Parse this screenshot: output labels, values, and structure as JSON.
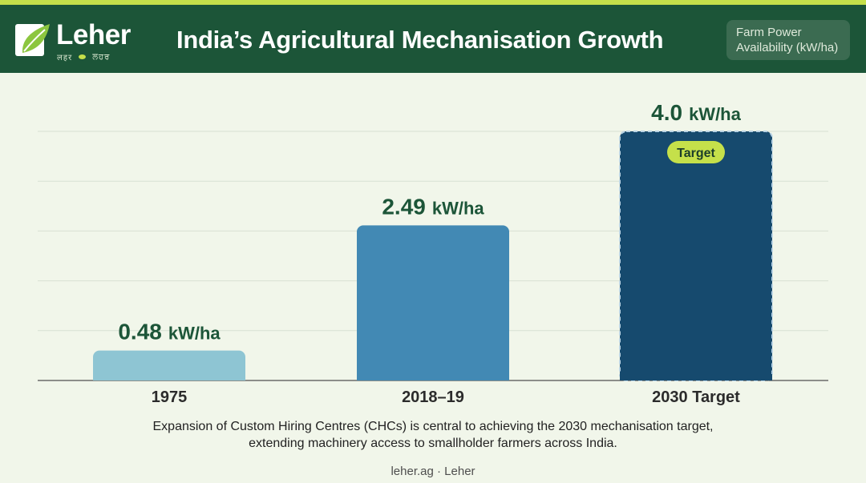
{
  "header": {
    "brand": "Leher",
    "brand_sub_left": "लहर",
    "brand_sub_right": "ਲਹਰ",
    "title": "India’s Agricultural Mechanisation Growth",
    "metric_badge_line1": "Farm Power",
    "metric_badge_line2": "Availability (kW/ha)"
  },
  "chart_data": {
    "type": "bar",
    "categories": [
      "1975",
      "2018–19",
      "2030 Target"
    ],
    "values": [
      0.48,
      2.49,
      4.0
    ],
    "value_labels": [
      "0.48",
      "2.49",
      "4.0"
    ],
    "unit": "kW/ha",
    "ylim": [
      0,
      4.0
    ],
    "grid": true,
    "target_badge": "Target",
    "colors": [
      "#8ec5d3",
      "#4289b4",
      "#164a6e"
    ],
    "label_color": "#1c5538"
  },
  "caption": {
    "line1": "Expansion of Custom Hiring Centres (CHCs) is central to achieving the 2030 mechanisation target,",
    "line2": "extending machinery access to smallholder farmers across India."
  },
  "footer": "leher.ag · Leher",
  "colors": {
    "header_bg": "#1c5538",
    "accent": "#c5e04a",
    "page_bg": "#f1f6ea"
  }
}
